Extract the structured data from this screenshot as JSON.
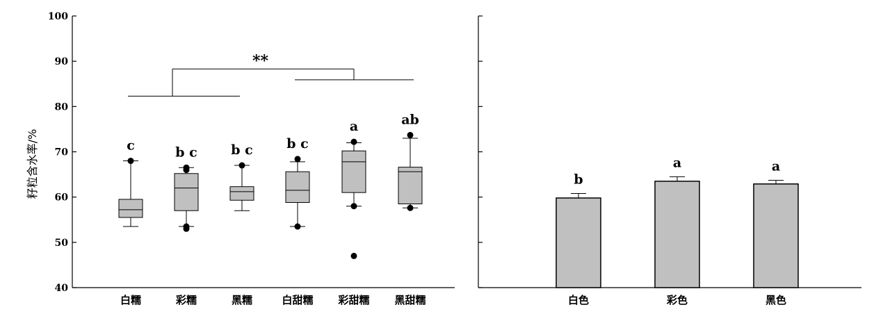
{
  "colors": {
    "box_fill": "#c0c0c0",
    "bar_fill": "#c0c0c0",
    "ink": "#000000"
  },
  "chart_data": [
    {
      "type": "box",
      "ylabel": "籽粒含水率/%",
      "ylim": [
        40,
        100
      ],
      "yticks": [
        "40",
        "50",
        "60",
        "70",
        "80",
        "90",
        "100"
      ],
      "categories": [
        "白糯",
        "彩糯",
        "黑糯",
        "白甜糯",
        "彩甜糯",
        "黑甜糯"
      ],
      "boxes": [
        {
          "whisker_low": 53.5,
          "q1": 55.5,
          "median": 57.2,
          "q3": 59.5,
          "whisker_high": 68.0,
          "outliers": [
            68.0
          ]
        },
        {
          "whisker_low": 53.5,
          "q1": 57.0,
          "median": 62.0,
          "q3": 65.2,
          "whisker_high": 66.5,
          "outliers": [
            53.0,
            53.5,
            66.0,
            66.5
          ]
        },
        {
          "whisker_low": 57.0,
          "q1": 59.3,
          "median": 61.2,
          "q3": 62.3,
          "whisker_high": 67.0,
          "outliers": [
            67.0
          ]
        },
        {
          "whisker_low": 53.5,
          "q1": 58.8,
          "median": 61.5,
          "q3": 65.6,
          "whisker_high": 67.8,
          "outliers": [
            68.4,
            53.5
          ]
        },
        {
          "whisker_low": 58.0,
          "q1": 61.0,
          "median": 67.8,
          "q3": 70.2,
          "whisker_high": 72.0,
          "outliers": [
            72.2,
            58.0,
            47.0
          ]
        },
        {
          "whisker_low": 57.6,
          "q1": 58.5,
          "median": 65.6,
          "q3": 66.6,
          "whisker_high": 73.0,
          "outliers": [
            73.7,
            57.6
          ]
        }
      ],
      "letters": [
        "c",
        "b c",
        "b c",
        "b c",
        "a",
        "ab"
      ],
      "significance": {
        "label": "**",
        "group1_line_y": 82.3,
        "group2_line_y": 85.9,
        "top_y": 88.3
      }
    },
    {
      "type": "bar",
      "ylim": [
        40,
        100
      ],
      "categories": [
        "白色",
        "彩色",
        "黑色"
      ],
      "values": [
        59.8,
        63.5,
        62.9
      ],
      "errors": [
        1.0,
        1.0,
        0.8
      ],
      "letters": [
        "b",
        "a",
        "a"
      ]
    }
  ]
}
